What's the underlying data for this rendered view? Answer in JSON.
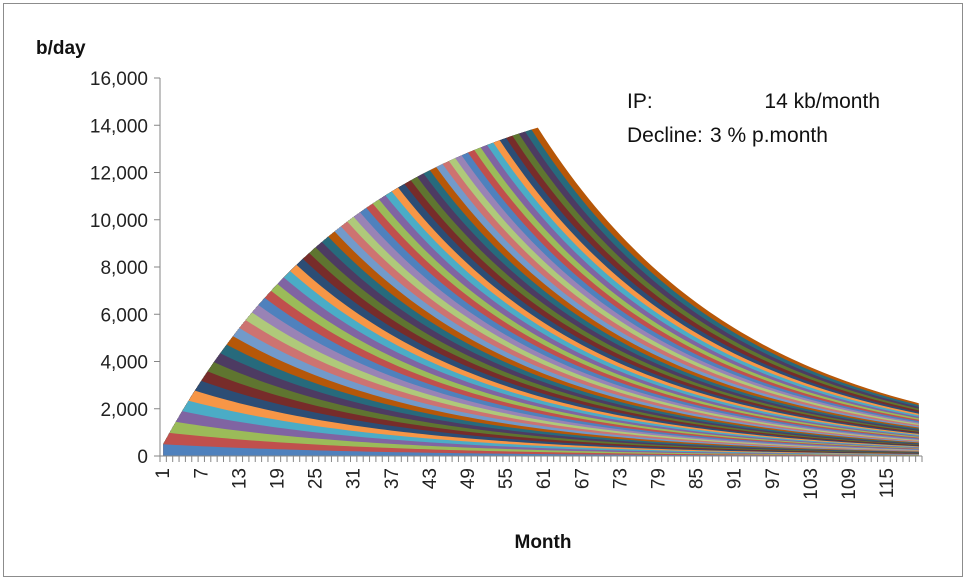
{
  "chart_data": {
    "type": "area",
    "stacked": true,
    "title": "",
    "ylabel": "b/day",
    "xlabel": "Month",
    "ylim": [
      0,
      16000
    ],
    "yticks": [
      "0",
      "2,000",
      "4,000",
      "6,000",
      "8,000",
      "10,000",
      "12,000",
      "14,000",
      "16,000"
    ],
    "x_range": [
      1,
      120
    ],
    "x_tick_labels": [
      "1",
      "7",
      "13",
      "19",
      "25",
      "31",
      "37",
      "43",
      "49",
      "55",
      "61",
      "67",
      "73",
      "79",
      "85",
      "91",
      "97",
      "103",
      "109",
      "115"
    ],
    "wells_started": 60,
    "initial_production": 14,
    "initial_production_unit": "kb/month",
    "decline_rate_pct_per_month": 3,
    "peak": {
      "month": 60,
      "value": 13900
    },
    "end": {
      "month": 120,
      "value": 2200
    },
    "series_colors": [
      "#4f81bd",
      "#c0504d",
      "#9bbb59",
      "#8064a2",
      "#4bacc6",
      "#f79646",
      "#2c4d75",
      "#772c2a",
      "#5f7530",
      "#4d3b62",
      "#276a7c",
      "#b65708",
      "#729aca",
      "#cd7371",
      "#afc97a",
      "#9983b5"
    ],
    "legend": "none",
    "grid": false
  },
  "annotation": {
    "ip_label": "IP:",
    "ip_value": "14 kb/month",
    "decline_label": "Decline:",
    "decline_value": "3 % p.month"
  }
}
